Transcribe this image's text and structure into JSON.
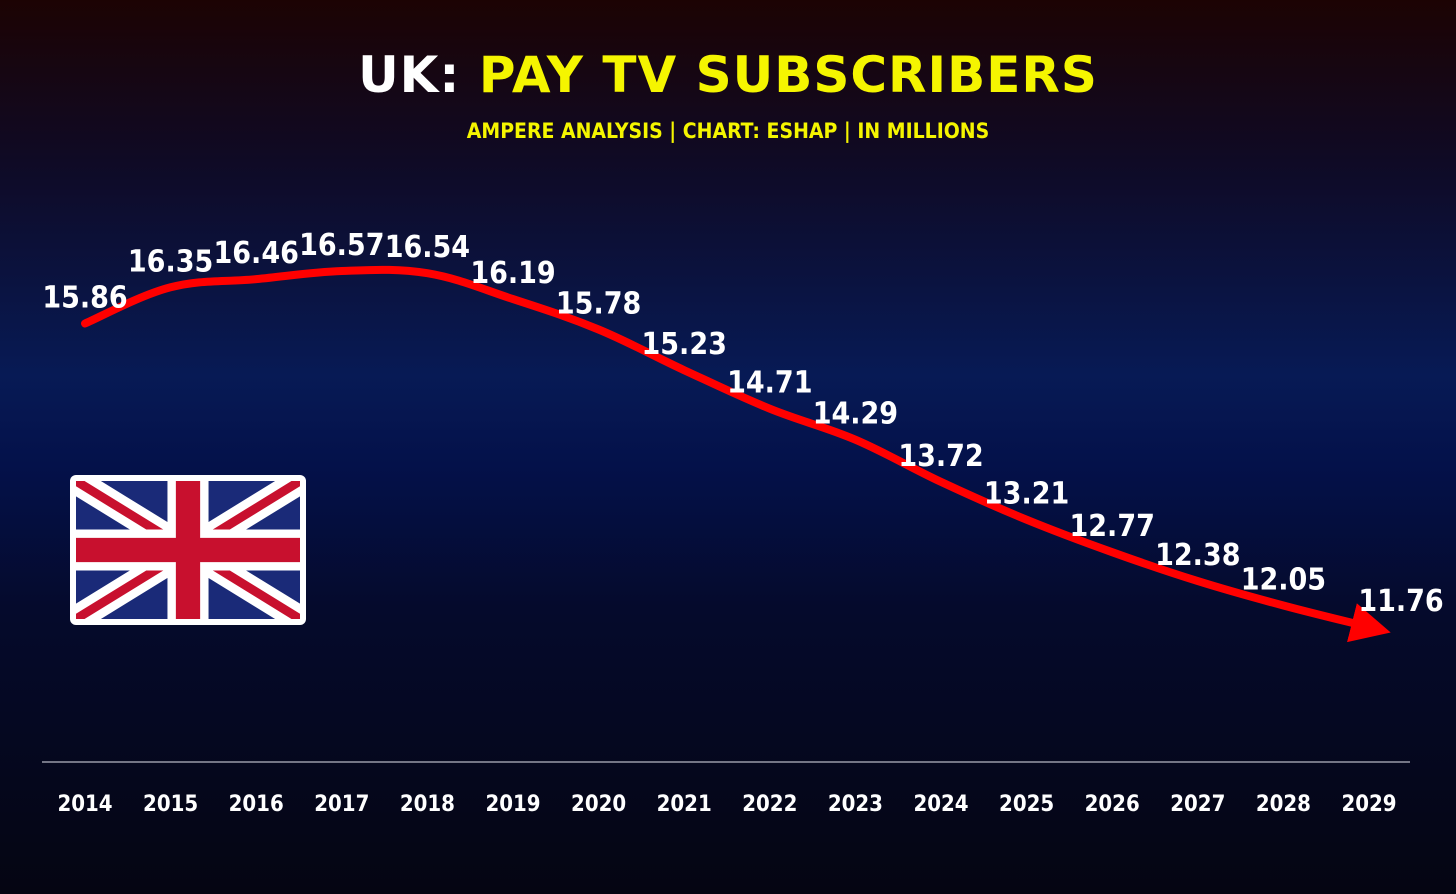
{
  "header": {
    "title_part1": "UK:",
    "title_part2": "PAY TV SUBSCRIBERS",
    "subtitle": "AMPERE ANALYSIS | CHART: ESHAP | IN MILLIONS"
  },
  "colors": {
    "title_white": "#ffffff",
    "accent_yellow": "#f5f500",
    "line_red": "#ff0000",
    "labels": "#ffffff"
  },
  "decoration": {
    "flag": "union-jack-icon"
  },
  "chart_data": {
    "type": "line",
    "x": [
      "2014",
      "2015",
      "2016",
      "2017",
      "2018",
      "2019",
      "2020",
      "2021",
      "2022",
      "2023",
      "2024",
      "2025",
      "2026",
      "2027",
      "2028",
      "2029"
    ],
    "series": [
      {
        "values": [
          15.86,
          16.35,
          16.46,
          16.57,
          16.54,
          16.19,
          15.78,
          15.23,
          14.71,
          14.29,
          13.72,
          13.21,
          12.77,
          12.38,
          12.05,
          11.76
        ]
      }
    ],
    "data_labels": [
      "15.86",
      "16.35",
      "16.46",
      "16.57",
      "16.54",
      "16.19",
      "15.78",
      "15.23",
      "14.71",
      "14.29",
      "13.72",
      "13.21",
      "12.77",
      "12.38",
      "12.05",
      "11.76"
    ],
    "xlabel": "",
    "ylabel": "",
    "y_axis_visible": false,
    "grid": false,
    "legend": "none",
    "line_end": "arrow"
  }
}
